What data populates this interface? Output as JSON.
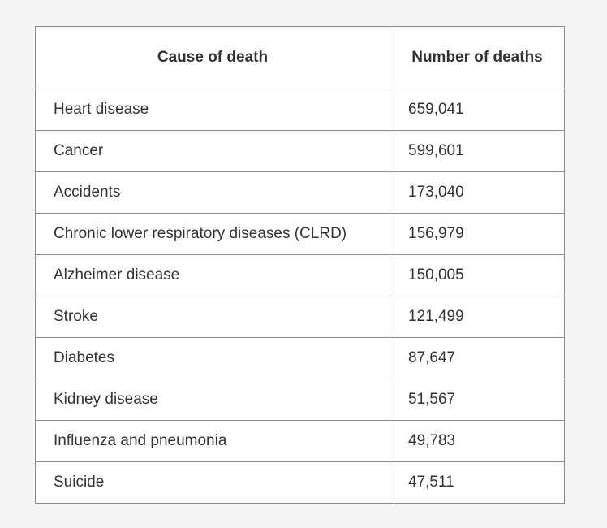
{
  "table": {
    "headers": [
      "Cause of death",
      "Number of deaths"
    ],
    "rows": [
      [
        "Heart disease",
        "659,041"
      ],
      [
        "Cancer",
        "599,601"
      ],
      [
        "Accidents",
        "173,040"
      ],
      [
        "Chronic lower respiratory diseases (CLRD)",
        "156,979"
      ],
      [
        "Alzheimer disease",
        "150,005"
      ],
      [
        "Stroke",
        "121,499"
      ],
      [
        "Diabetes",
        "87,647"
      ],
      [
        "Kidney disease",
        "51,567"
      ],
      [
        "Influenza and pneumonia",
        "49,783"
      ],
      [
        "Suicide",
        "47,511"
      ]
    ]
  }
}
